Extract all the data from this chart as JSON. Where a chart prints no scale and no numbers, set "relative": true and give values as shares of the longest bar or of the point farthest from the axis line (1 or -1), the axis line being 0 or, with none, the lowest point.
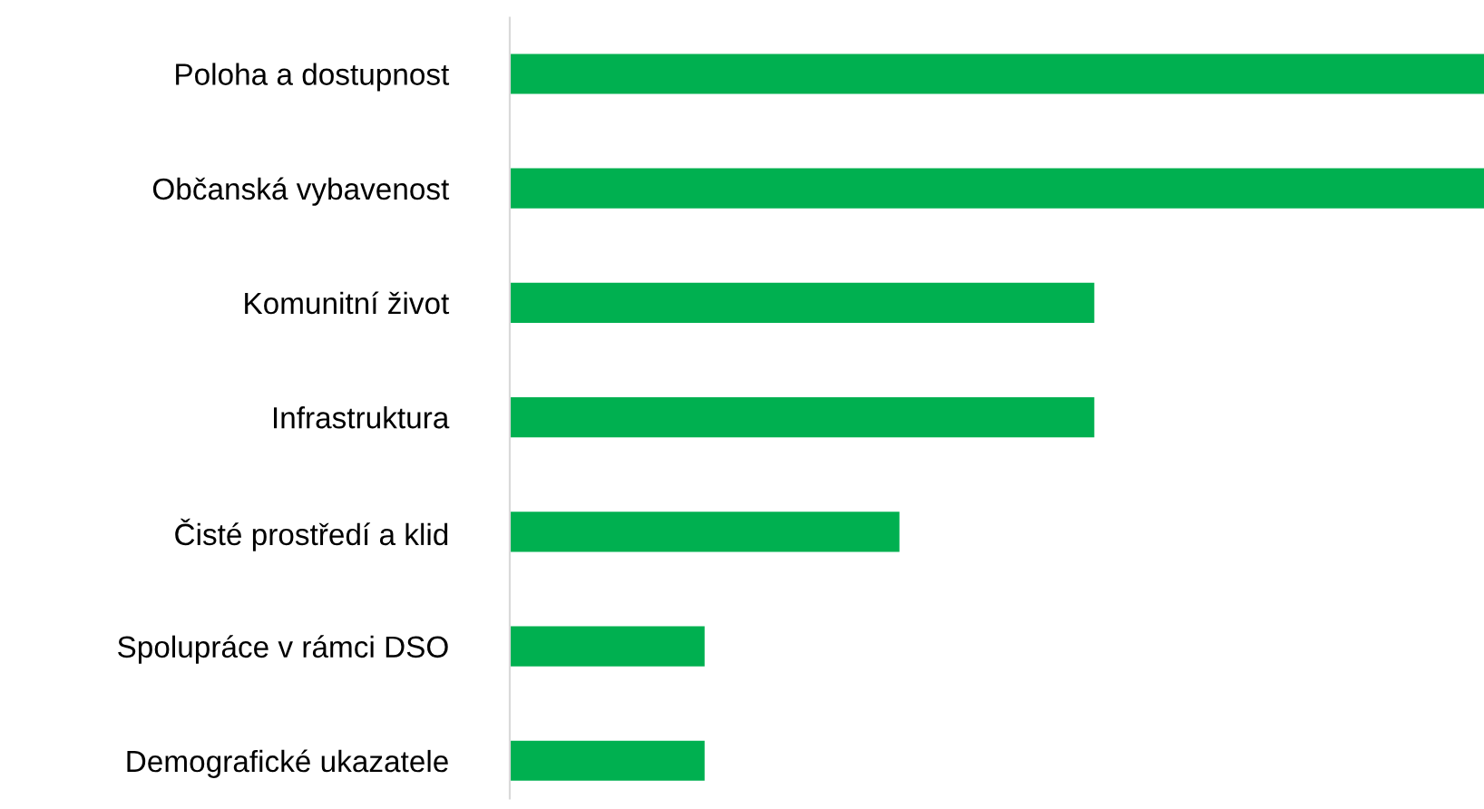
{
  "chart_data": {
    "type": "bar",
    "orientation": "horizontal",
    "relative": true,
    "categories": [
      "Poloha a dostupnost",
      "Občanská vybavenost",
      "Komunitní život",
      "Infrastruktura",
      "Čisté prostředí a klid",
      "Spolupráce v rámci DSO",
      "Demografické ukazatele"
    ],
    "values": [
      1,
      1,
      0.6,
      0.6,
      0.4,
      0.2,
      0.2
    ],
    "color": "#00b050",
    "grid": false,
    "legend": false
  }
}
